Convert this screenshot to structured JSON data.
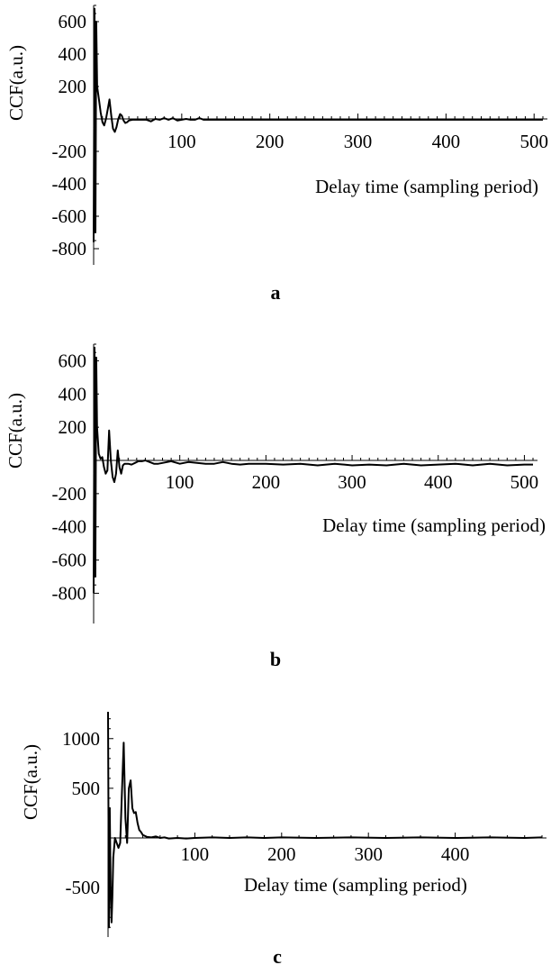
{
  "chart_data": [
    {
      "type": "line",
      "panel_label": "a",
      "xlabel": "Delay time (sampling period)",
      "ylabel": "CCF(a.u.)",
      "xlim": [
        0,
        510
      ],
      "ylim": [
        -820,
        700
      ],
      "xticks": [
        100,
        200,
        300,
        400,
        500
      ],
      "yticks": [
        600,
        400,
        200,
        -200,
        -400,
        -600,
        -800
      ],
      "series": [
        {
          "x": [
            0,
            1,
            2,
            3,
            4,
            6,
            8,
            10,
            12,
            14,
            16,
            18,
            20,
            22,
            24,
            26,
            28,
            30,
            32,
            34,
            36,
            38,
            40,
            44,
            48,
            52,
            56,
            60,
            65,
            70,
            75,
            80,
            85,
            90,
            95,
            100,
            105,
            110,
            115,
            120,
            125,
            130,
            140,
            150,
            160,
            170,
            180,
            190,
            200,
            220,
            240,
            260,
            280,
            300,
            320,
            340,
            360,
            380,
            400,
            420,
            440,
            460,
            480,
            500,
            510
          ],
          "y": [
            -760,
            680,
            -700,
            600,
            200,
            120,
            40,
            -20,
            -40,
            0,
            60,
            120,
            20,
            -60,
            -80,
            -50,
            0,
            30,
            20,
            -10,
            -25,
            -20,
            -10,
            -5,
            -5,
            -5,
            -5,
            -5,
            -15,
            0,
            -5,
            5,
            -5,
            5,
            -10,
            -5,
            0,
            -5,
            -5,
            5,
            -5,
            -5,
            -5,
            -5,
            -5,
            -5,
            -5,
            -5,
            -5,
            -5,
            -5,
            -5,
            -5,
            -5,
            -5,
            -5,
            -5,
            -5,
            -5,
            -5,
            -5,
            -5,
            -5,
            -5,
            -5
          ]
        }
      ]
    },
    {
      "type": "line",
      "panel_label": "b",
      "xlabel": "Delay time (sampling period)",
      "ylabel": "CCF(a.u.)",
      "xlim": [
        0,
        510
      ],
      "ylim": [
        -820,
        700
      ],
      "xticks": [
        100,
        200,
        300,
        400,
        500
      ],
      "yticks": [
        600,
        400,
        200,
        -200,
        -400,
        -600,
        -800
      ],
      "series": [
        {
          "x": [
            0,
            1,
            2,
            3,
            4,
            6,
            8,
            10,
            12,
            14,
            16,
            18,
            20,
            22,
            24,
            26,
            28,
            30,
            32,
            34,
            36,
            40,
            44,
            48,
            52,
            56,
            60,
            65,
            70,
            75,
            80,
            90,
            100,
            110,
            120,
            130,
            140,
            150,
            160,
            170,
            180,
            200,
            220,
            240,
            260,
            280,
            300,
            320,
            340,
            360,
            380,
            400,
            420,
            440,
            460,
            480,
            500,
            510
          ],
          "y": [
            -800,
            680,
            -700,
            620,
            200,
            40,
            10,
            20,
            -40,
            -80,
            -60,
            180,
            0,
            -100,
            -130,
            -80,
            60,
            -40,
            -80,
            -30,
            -20,
            -20,
            -25,
            -15,
            -5,
            -5,
            0,
            -10,
            -20,
            -20,
            -15,
            -5,
            -20,
            -10,
            -15,
            -20,
            -20,
            -10,
            -20,
            -25,
            -20,
            -20,
            -25,
            -20,
            -30,
            -20,
            -30,
            -25,
            -30,
            -20,
            -30,
            -25,
            -20,
            -30,
            -20,
            -30,
            -25,
            -25
          ]
        }
      ]
    },
    {
      "type": "line",
      "panel_label": "c",
      "xlabel": "Delay time (sampling period)",
      "ylabel": "CCF(a.u.)",
      "xlim": [
        0,
        500
      ],
      "ylim": [
        -900,
        1270
      ],
      "xticks": [
        100,
        200,
        300,
        400
      ],
      "yticks": [
        1000,
        500,
        -500
      ],
      "series": [
        {
          "x": [
            0,
            1,
            2,
            3,
            4,
            5,
            6,
            8,
            10,
            12,
            14,
            16,
            18,
            20,
            22,
            24,
            26,
            28,
            30,
            32,
            34,
            36,
            38,
            40,
            45,
            50,
            55,
            60,
            65,
            70,
            80,
            90,
            100,
            120,
            140,
            160,
            180,
            200,
            240,
            280,
            320,
            360,
            400,
            440,
            480,
            500
          ],
          "y": [
            1270,
            -900,
            300,
            -500,
            -850,
            -600,
            -200,
            0,
            -50,
            -100,
            -50,
            450,
            960,
            200,
            -50,
            500,
            580,
            300,
            250,
            260,
            150,
            80,
            60,
            30,
            10,
            5,
            15,
            0,
            5,
            -5,
            0,
            -5,
            0,
            5,
            0,
            5,
            0,
            5,
            0,
            5,
            0,
            5,
            0,
            5,
            0,
            5
          ]
        }
      ]
    }
  ]
}
